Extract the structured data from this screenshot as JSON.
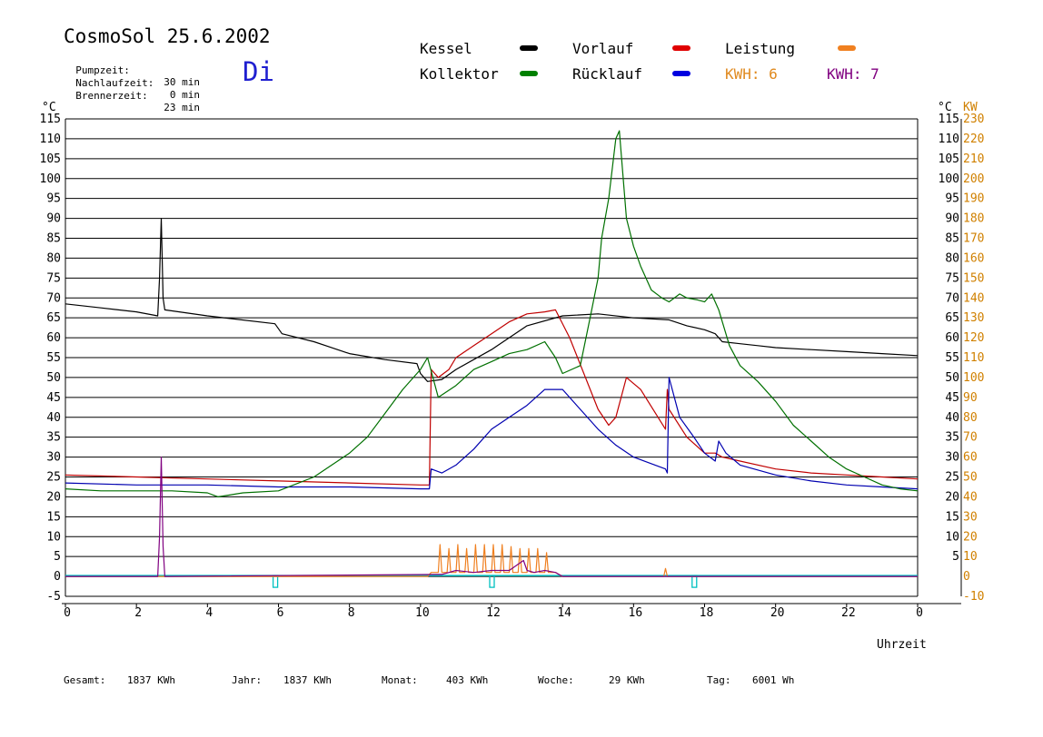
{
  "header": {
    "title": "CosmoSol 25.6.2002",
    "day": "Di",
    "info": [
      {
        "label": "Pumpzeit:",
        "value": "30 min"
      },
      {
        "label": "Nachlaufzeit:",
        "value": "0 min"
      },
      {
        "label": "Brennerzeit:",
        "value": "23 min"
      }
    ]
  },
  "legend": {
    "items": [
      {
        "label": "Kessel",
        "color": "#000000"
      },
      {
        "label": "Vorlauf",
        "color": "#e00000"
      },
      {
        "label": "Leistung",
        "color": "#f08020"
      },
      {
        "label": "Kollektor",
        "color": "#008000"
      },
      {
        "label": "Rücklauf",
        "color": "#0000e0"
      }
    ],
    "kwh_orange": "KWH: 6",
    "kwh_purple": "KWH: 7"
  },
  "colors": {
    "kessel": "#000000",
    "vorlauf": "#c00000",
    "ruecklauf": "#0000b0",
    "kollektor": "#007000",
    "leistung": "#f08020",
    "purple": "#800080",
    "cyan": "#00c0c0",
    "axis_right": "#d08000"
  },
  "footer": [
    {
      "label": "Gesamt:",
      "value": "1837 KWh"
    },
    {
      "label": "Jahr:",
      "value": "1837 KWh"
    },
    {
      "label": "Monat:",
      "value": "403 KWh"
    },
    {
      "label": "Woche:",
      "value": "29 KWh"
    },
    {
      "label": "Tag:",
      "value": "6001 Wh"
    }
  ],
  "chart_data": {
    "type": "line",
    "xlabel": "Uhrzeit",
    "ylabel_left": "°C",
    "ylabel_right": "°C",
    "ylabel_power": "KW",
    "xlim": [
      0,
      24
    ],
    "ylim": [
      -5,
      115
    ],
    "ylim_power": [
      -10,
      230
    ],
    "grid": true,
    "x_ticks": [
      "0",
      "2",
      "4",
      "6",
      "8",
      "10",
      "12",
      "14",
      "16",
      "18",
      "20",
      "22",
      "0"
    ],
    "y_ticks": [
      115,
      110,
      105,
      100,
      95,
      90,
      85,
      80,
      75,
      70,
      65,
      60,
      55,
      50,
      45,
      40,
      35,
      30,
      25,
      20,
      15,
      10,
      5,
      0,
      -5
    ],
    "y_ticks_right": [
      115,
      110,
      105,
      100,
      95,
      90,
      85,
      80,
      75,
      70,
      65,
      60,
      55,
      50,
      45,
      40,
      35,
      30,
      25,
      20,
      15,
      10,
      5
    ],
    "power_ticks": [
      230,
      220,
      210,
      200,
      190,
      180,
      170,
      160,
      150,
      140,
      130,
      120,
      110,
      100,
      90,
      80,
      70,
      60,
      50,
      40,
      30,
      20,
      10,
      0,
      -10
    ],
    "series": [
      {
        "name": "Kessel",
        "key": "kessel",
        "unit": "C",
        "x": [
          0,
          1,
          2,
          2.6,
          2.65,
          2.7,
          2.75,
          2.8,
          4,
          5.9,
          6.1,
          7,
          8,
          9,
          9.9,
          10,
          10.2,
          10.6,
          11,
          12,
          13,
          14,
          15,
          16,
          17,
          17.5,
          18,
          18.3,
          18.5,
          19,
          19.5,
          20,
          21,
          22,
          23,
          24
        ],
        "y": [
          68.5,
          67.5,
          66.5,
          65.5,
          75,
          90,
          70,
          67,
          65.5,
          63.5,
          61,
          59,
          56,
          54.5,
          53.5,
          51,
          49,
          49.5,
          52,
          57,
          63,
          65.5,
          66,
          65,
          64.5,
          63,
          62,
          61,
          59,
          58.5,
          58,
          57.5,
          57,
          56.5,
          56,
          55.5
        ]
      },
      {
        "name": "Vorlauf",
        "key": "vorlauf",
        "unit": "C",
        "x": [
          0,
          2,
          4,
          6,
          8,
          10,
          10.25,
          10.3,
          10.5,
          10.8,
          11,
          11.5,
          12,
          12.5,
          13,
          13.5,
          13.8,
          14.2,
          15,
          15.3,
          15.5,
          15.8,
          16.2,
          16.9,
          16.95,
          17,
          17.5,
          18,
          18.3,
          18.5,
          19,
          20,
          21,
          22,
          23,
          24
        ],
        "y": [
          25.5,
          25,
          24.5,
          24,
          23.5,
          23,
          23,
          52,
          50,
          52,
          55,
          58,
          61,
          64,
          66,
          66.5,
          67,
          60,
          42,
          38,
          40,
          50,
          47,
          37,
          47,
          42,
          35,
          31,
          31,
          30,
          29,
          27,
          26,
          25.5,
          25,
          24.5
        ]
      },
      {
        "name": "Rücklauf",
        "key": "ruecklauf",
        "unit": "C",
        "x": [
          0,
          2,
          4,
          6,
          8,
          10,
          10.25,
          10.3,
          10.6,
          11,
          11.5,
          12,
          12.5,
          13,
          13.5,
          14,
          14.5,
          15,
          15.5,
          16,
          16.9,
          16.95,
          17,
          17.3,
          17.7,
          18,
          18.3,
          18.4,
          18.6,
          19,
          20,
          21,
          22,
          23,
          24
        ],
        "y": [
          23.5,
          23,
          23,
          22.5,
          22.5,
          22,
          22,
          27,
          26,
          28,
          32,
          37,
          40,
          43,
          47,
          47,
          42,
          37,
          33,
          30,
          27,
          26,
          50,
          40,
          35,
          31,
          29,
          34,
          31,
          28,
          25.5,
          24,
          23,
          22.5,
          22
        ]
      },
      {
        "name": "Kollektor",
        "key": "kollektor",
        "unit": "C",
        "x": [
          0,
          1,
          2,
          3,
          4,
          4.3,
          5,
          6,
          7,
          7.5,
          8,
          8.5,
          9,
          9.5,
          10,
          10.2,
          10.5,
          11,
          11.5,
          12,
          12.5,
          13,
          13.5,
          13.8,
          14,
          14.5,
          14.8,
          15,
          15.1,
          15.3,
          15.5,
          15.6,
          15.8,
          16,
          16.2,
          16.5,
          16.8,
          17,
          17.3,
          17.5,
          17.8,
          18,
          18.2,
          18.4,
          18.7,
          19,
          19.5,
          20,
          20.5,
          21,
          21.5,
          22,
          22.5,
          23,
          23.5,
          24
        ],
        "y": [
          22,
          21.5,
          21.5,
          21.5,
          21,
          20,
          21,
          21.5,
          25,
          28,
          31,
          35,
          41,
          47,
          52,
          55,
          45,
          48,
          52,
          54,
          56,
          57,
          59,
          55,
          51,
          53,
          66,
          75,
          85,
          95,
          110,
          112,
          90,
          83,
          78,
          72,
          70,
          69,
          71,
          70,
          69.5,
          69,
          71,
          67,
          58,
          53,
          49,
          44,
          38,
          34,
          30,
          27,
          25,
          23,
          22,
          21.5
        ]
      },
      {
        "name": "Leistung",
        "key": "leistung",
        "unit": "KW",
        "x": [
          0,
          10.2,
          10.3,
          10.5,
          10.55,
          10.6,
          10.75,
          10.8,
          10.85,
          11,
          11.05,
          11.1,
          11.25,
          11.3,
          11.35,
          11.5,
          11.55,
          11.6,
          11.75,
          11.8,
          11.85,
          12,
          12.05,
          12.1,
          12.25,
          12.3,
          12.35,
          12.5,
          12.55,
          12.6,
          12.75,
          12.8,
          12.85,
          13,
          13.05,
          13.1,
          13.25,
          13.3,
          13.35,
          13.5,
          13.55,
          13.6,
          13.8,
          14,
          16.85,
          16.9,
          16.95,
          24
        ],
        "y": [
          0,
          0,
          2,
          2,
          16,
          2,
          2,
          14,
          2,
          2,
          16,
          2,
          2,
          14,
          2,
          2,
          16,
          2,
          2,
          16,
          2,
          2,
          16,
          2,
          2,
          16,
          2,
          2,
          15,
          2,
          2,
          14,
          2,
          2,
          14,
          2,
          2,
          14,
          2,
          2,
          12,
          2,
          2,
          0,
          0,
          4,
          0,
          0
        ]
      },
      {
        "name": "KWH: 7",
        "key": "purple",
        "unit": "KW",
        "x": [
          0,
          2.6,
          2.65,
          2.7,
          2.75,
          2.8,
          10.6,
          11,
          11.5,
          12,
          12.5,
          12.9,
          13,
          13.2,
          13.5,
          13.8,
          14,
          24
        ],
        "y": [
          0,
          0,
          20,
          60,
          15,
          0,
          1,
          3,
          2,
          3,
          3,
          8,
          3,
          2,
          3,
          2,
          0,
          0
        ]
      }
    ],
    "annotations": [
      {
        "type": "marker",
        "x": 5.9,
        "label": ""
      },
      {
        "type": "marker",
        "x": 12,
        "label": ""
      },
      {
        "type": "marker",
        "x": 17.7,
        "label": ""
      }
    ]
  }
}
